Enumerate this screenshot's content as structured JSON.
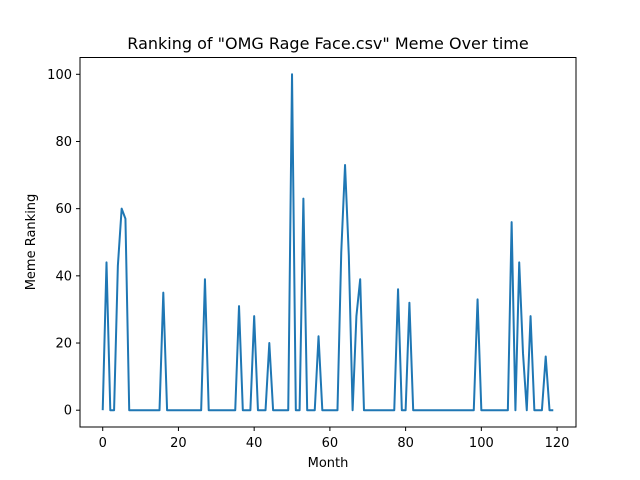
{
  "chart_data": {
    "type": "line",
    "title": "Ranking of \"OMG Rage Face.csv\" Meme Over time",
    "xlabel": "Month",
    "ylabel": "Meme Ranking",
    "xlim": [
      -6,
      125
    ],
    "ylim": [
      -5,
      105
    ],
    "xticks": [
      0,
      20,
      40,
      60,
      80,
      100,
      120
    ],
    "yticks": [
      0,
      20,
      40,
      60,
      80,
      100
    ],
    "grid": false,
    "line_color": "#1f77b4",
    "series": [
      {
        "x": [
          0,
          1,
          2,
          3,
          4,
          5,
          6,
          7,
          8,
          9,
          10,
          11,
          12,
          13,
          14,
          15,
          16,
          17,
          18,
          19,
          20,
          21,
          22,
          23,
          24,
          25,
          26,
          27,
          28,
          29,
          30,
          31,
          32,
          33,
          34,
          35,
          36,
          37,
          38,
          39,
          40,
          41,
          42,
          43,
          44,
          45,
          46,
          47,
          48,
          49,
          50,
          51,
          52,
          53,
          54,
          55,
          56,
          57,
          58,
          59,
          60,
          61,
          62,
          63,
          64,
          65,
          66,
          67,
          68,
          69,
          70,
          71,
          72,
          73,
          74,
          75,
          76,
          77,
          78,
          79,
          80,
          81,
          82,
          83,
          84,
          85,
          86,
          87,
          88,
          89,
          90,
          91,
          92,
          93,
          94,
          95,
          96,
          97,
          98,
          99,
          100,
          101,
          102,
          103,
          104,
          105,
          106,
          107,
          108,
          109,
          110,
          111,
          112,
          113,
          114,
          115,
          116,
          117,
          118,
          119
        ],
        "values": [
          0,
          44,
          0,
          0,
          43,
          60,
          57,
          0,
          0,
          0,
          0,
          0,
          0,
          0,
          0,
          0,
          35,
          0,
          0,
          0,
          0,
          0,
          0,
          0,
          0,
          0,
          0,
          39,
          0,
          0,
          0,
          0,
          0,
          0,
          0,
          0,
          31,
          0,
          0,
          0,
          28,
          0,
          0,
          0,
          20,
          0,
          0,
          0,
          0,
          0,
          100,
          0,
          0,
          63,
          0,
          0,
          0,
          22,
          0,
          0,
          0,
          0,
          0,
          47,
          73,
          46,
          0,
          28,
          39,
          0,
          0,
          0,
          0,
          0,
          0,
          0,
          0,
          0,
          36,
          0,
          0,
          32,
          0,
          0,
          0,
          0,
          0,
          0,
          0,
          0,
          0,
          0,
          0,
          0,
          0,
          0,
          0,
          0,
          0,
          33,
          0,
          0,
          0,
          0,
          0,
          0,
          0,
          0,
          56,
          0,
          44,
          17,
          0,
          28,
          0,
          0,
          0,
          16,
          0,
          0
        ]
      }
    ]
  }
}
